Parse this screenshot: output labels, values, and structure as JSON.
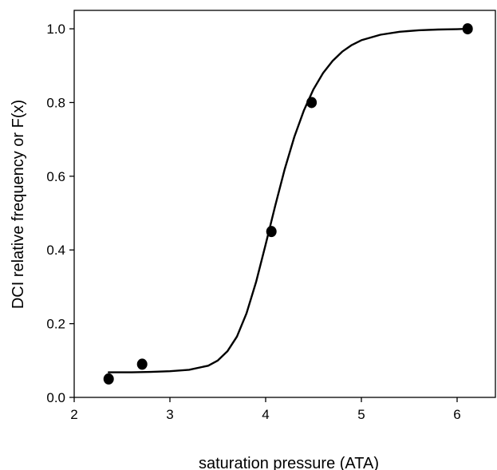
{
  "chart_data": {
    "type": "scatter",
    "title": "",
    "xlabel": "saturation pressure (ATA)",
    "ylabel": "DCI relative frequency or F(x)",
    "xlim": [
      2,
      6.4
    ],
    "ylim": [
      0,
      1.05
    ],
    "xticks": [
      2,
      3,
      4,
      5,
      6
    ],
    "yticks": [
      0.0,
      0.2,
      0.4,
      0.6,
      0.8,
      1.0
    ],
    "xtick_labels": [
      "2",
      "3",
      "4",
      "5",
      "6"
    ],
    "ytick_labels": [
      "0.0",
      "0.2",
      "0.4",
      "0.6",
      "0.8",
      "1.0"
    ],
    "grid": false,
    "legend": "none",
    "series": [
      {
        "kind": "points",
        "x": [
          2.36,
          2.71,
          4.06,
          4.48,
          6.11
        ],
        "y": [
          0.05,
          0.09,
          0.45,
          0.8,
          1.0
        ]
      },
      {
        "kind": "fitted-curve",
        "x": [
          2.36,
          2.6,
          2.8,
          3.0,
          3.2,
          3.4,
          3.5,
          3.6,
          3.7,
          3.8,
          3.9,
          4.0,
          4.1,
          4.2,
          4.3,
          4.4,
          4.5,
          4.6,
          4.7,
          4.8,
          4.9,
          5.0,
          5.2,
          5.4,
          5.6,
          5.8,
          6.0,
          6.11
        ],
        "y": [
          0.068,
          0.068,
          0.069,
          0.071,
          0.075,
          0.086,
          0.1,
          0.125,
          0.165,
          0.228,
          0.313,
          0.415,
          0.52,
          0.62,
          0.707,
          0.779,
          0.836,
          0.88,
          0.913,
          0.938,
          0.956,
          0.969,
          0.984,
          0.992,
          0.996,
          0.998,
          0.999,
          1.0
        ]
      }
    ]
  }
}
